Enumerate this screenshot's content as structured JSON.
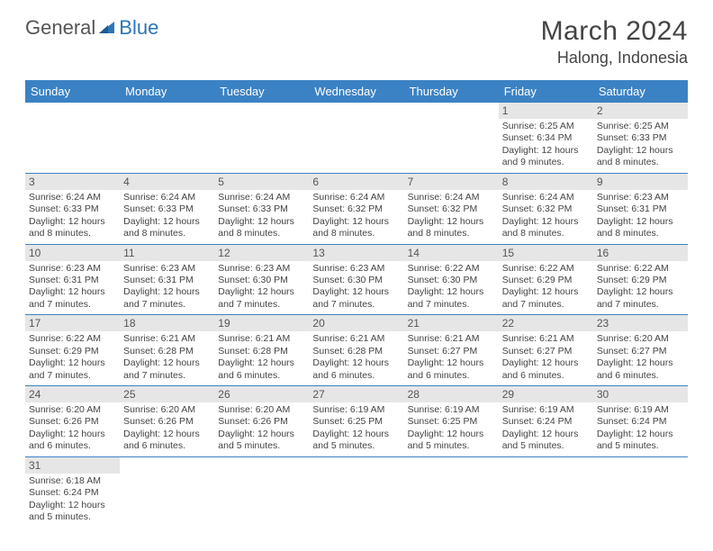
{
  "brand": {
    "part1": "General",
    "part2": "Blue"
  },
  "title": {
    "month": "March 2024",
    "location": "Halong, Indonesia"
  },
  "colors": {
    "header_bg": "#3b82c4",
    "header_fg": "#ffffff",
    "daynum_bg": "#e6e6e6",
    "row_divider": "#3b82c4",
    "brand_gray": "#555555",
    "brand_blue": "#2d76b5"
  },
  "day_headers": [
    "Sunday",
    "Monday",
    "Tuesday",
    "Wednesday",
    "Thursday",
    "Friday",
    "Saturday"
  ],
  "weeks": [
    [
      null,
      null,
      null,
      null,
      null,
      {
        "n": "1",
        "sunrise": "6:25 AM",
        "sunset": "6:34 PM",
        "daylight": "12 hours and 9 minutes."
      },
      {
        "n": "2",
        "sunrise": "6:25 AM",
        "sunset": "6:33 PM",
        "daylight": "12 hours and 8 minutes."
      }
    ],
    [
      {
        "n": "3",
        "sunrise": "6:24 AM",
        "sunset": "6:33 PM",
        "daylight": "12 hours and 8 minutes."
      },
      {
        "n": "4",
        "sunrise": "6:24 AM",
        "sunset": "6:33 PM",
        "daylight": "12 hours and 8 minutes."
      },
      {
        "n": "5",
        "sunrise": "6:24 AM",
        "sunset": "6:33 PM",
        "daylight": "12 hours and 8 minutes."
      },
      {
        "n": "6",
        "sunrise": "6:24 AM",
        "sunset": "6:32 PM",
        "daylight": "12 hours and 8 minutes."
      },
      {
        "n": "7",
        "sunrise": "6:24 AM",
        "sunset": "6:32 PM",
        "daylight": "12 hours and 8 minutes."
      },
      {
        "n": "8",
        "sunrise": "6:24 AM",
        "sunset": "6:32 PM",
        "daylight": "12 hours and 8 minutes."
      },
      {
        "n": "9",
        "sunrise": "6:23 AM",
        "sunset": "6:31 PM",
        "daylight": "12 hours and 8 minutes."
      }
    ],
    [
      {
        "n": "10",
        "sunrise": "6:23 AM",
        "sunset": "6:31 PM",
        "daylight": "12 hours and 7 minutes."
      },
      {
        "n": "11",
        "sunrise": "6:23 AM",
        "sunset": "6:31 PM",
        "daylight": "12 hours and 7 minutes."
      },
      {
        "n": "12",
        "sunrise": "6:23 AM",
        "sunset": "6:30 PM",
        "daylight": "12 hours and 7 minutes."
      },
      {
        "n": "13",
        "sunrise": "6:23 AM",
        "sunset": "6:30 PM",
        "daylight": "12 hours and 7 minutes."
      },
      {
        "n": "14",
        "sunrise": "6:22 AM",
        "sunset": "6:30 PM",
        "daylight": "12 hours and 7 minutes."
      },
      {
        "n": "15",
        "sunrise": "6:22 AM",
        "sunset": "6:29 PM",
        "daylight": "12 hours and 7 minutes."
      },
      {
        "n": "16",
        "sunrise": "6:22 AM",
        "sunset": "6:29 PM",
        "daylight": "12 hours and 7 minutes."
      }
    ],
    [
      {
        "n": "17",
        "sunrise": "6:22 AM",
        "sunset": "6:29 PM",
        "daylight": "12 hours and 7 minutes."
      },
      {
        "n": "18",
        "sunrise": "6:21 AM",
        "sunset": "6:28 PM",
        "daylight": "12 hours and 7 minutes."
      },
      {
        "n": "19",
        "sunrise": "6:21 AM",
        "sunset": "6:28 PM",
        "daylight": "12 hours and 6 minutes."
      },
      {
        "n": "20",
        "sunrise": "6:21 AM",
        "sunset": "6:28 PM",
        "daylight": "12 hours and 6 minutes."
      },
      {
        "n": "21",
        "sunrise": "6:21 AM",
        "sunset": "6:27 PM",
        "daylight": "12 hours and 6 minutes."
      },
      {
        "n": "22",
        "sunrise": "6:21 AM",
        "sunset": "6:27 PM",
        "daylight": "12 hours and 6 minutes."
      },
      {
        "n": "23",
        "sunrise": "6:20 AM",
        "sunset": "6:27 PM",
        "daylight": "12 hours and 6 minutes."
      }
    ],
    [
      {
        "n": "24",
        "sunrise": "6:20 AM",
        "sunset": "6:26 PM",
        "daylight": "12 hours and 6 minutes."
      },
      {
        "n": "25",
        "sunrise": "6:20 AM",
        "sunset": "6:26 PM",
        "daylight": "12 hours and 6 minutes."
      },
      {
        "n": "26",
        "sunrise": "6:20 AM",
        "sunset": "6:26 PM",
        "daylight": "12 hours and 5 minutes."
      },
      {
        "n": "27",
        "sunrise": "6:19 AM",
        "sunset": "6:25 PM",
        "daylight": "12 hours and 5 minutes."
      },
      {
        "n": "28",
        "sunrise": "6:19 AM",
        "sunset": "6:25 PM",
        "daylight": "12 hours and 5 minutes."
      },
      {
        "n": "29",
        "sunrise": "6:19 AM",
        "sunset": "6:24 PM",
        "daylight": "12 hours and 5 minutes."
      },
      {
        "n": "30",
        "sunrise": "6:19 AM",
        "sunset": "6:24 PM",
        "daylight": "12 hours and 5 minutes."
      }
    ],
    [
      {
        "n": "31",
        "sunrise": "6:18 AM",
        "sunset": "6:24 PM",
        "daylight": "12 hours and 5 minutes."
      },
      null,
      null,
      null,
      null,
      null,
      null
    ]
  ],
  "labels": {
    "sunrise": "Sunrise:",
    "sunset": "Sunset:",
    "daylight": "Daylight:"
  }
}
